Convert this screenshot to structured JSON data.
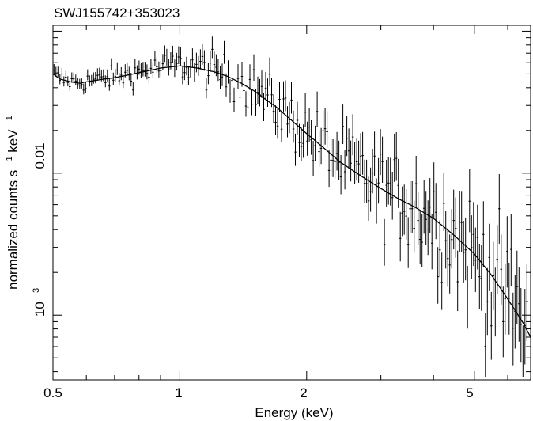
{
  "chart_data": {
    "type": "scatter",
    "title": "SWJ155742+353023",
    "xlabel": "Energy (keV)",
    "ylabel": {
      "main": "normalized counts s",
      "exp1": "−1",
      "mid": " keV",
      "exp2": "−1"
    },
    "x_scale": "log",
    "y_scale": "log",
    "xlim": [
      0.5,
      6.8
    ],
    "ylim": [
      0.00035,
      0.11
    ],
    "x_ticks": [
      {
        "value": 0.5,
        "label": "0.5"
      },
      {
        "value": 1,
        "label": "1"
      },
      {
        "value": 2,
        "label": "2"
      },
      {
        "value": 5,
        "label": "5"
      }
    ],
    "y_ticks": [
      {
        "value": 0.01,
        "label": "0.01",
        "exp": ""
      },
      {
        "value": 0.001,
        "label": "10",
        "exp": "−3"
      }
    ],
    "model": {
      "x": [
        0.5,
        0.52,
        0.55,
        0.58,
        0.6,
        0.63,
        0.66,
        0.7,
        0.75,
        0.8,
        0.85,
        0.9,
        0.95,
        1.0,
        1.05,
        1.1,
        1.2,
        1.3,
        1.4,
        1.5,
        1.6,
        1.7,
        1.8,
        2.0,
        2.2,
        2.4,
        2.7,
        3.0,
        3.3,
        3.6,
        4.0,
        4.5,
        5.0,
        5.5,
        6.0,
        6.5,
        6.8
      ],
      "y": [
        0.05,
        0.046,
        0.044,
        0.043,
        0.044,
        0.045,
        0.046,
        0.047,
        0.049,
        0.051,
        0.053,
        0.055,
        0.056,
        0.057,
        0.056,
        0.055,
        0.052,
        0.048,
        0.043,
        0.038,
        0.033,
        0.029,
        0.025,
        0.019,
        0.015,
        0.012,
        0.0095,
        0.0078,
        0.0066,
        0.0058,
        0.0048,
        0.0036,
        0.0027,
        0.0019,
        0.0013,
        0.0009,
        0.0007
      ]
    }
  }
}
